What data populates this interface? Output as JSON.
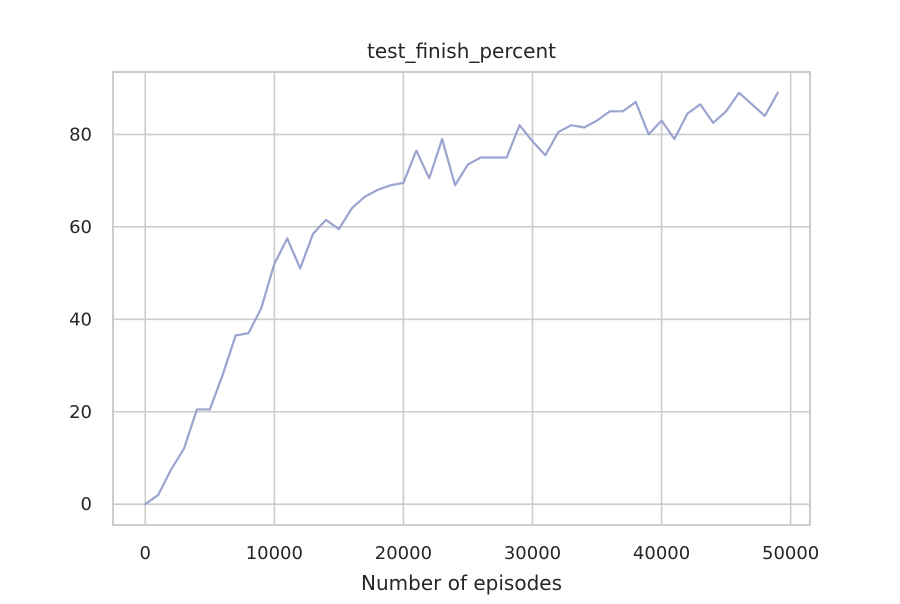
{
  "chart_data": {
    "type": "line",
    "title": "test_finish_percent",
    "xlabel": "Number of episodes",
    "ylabel": "",
    "xlim": [
      -2500,
      51500
    ],
    "ylim": [
      -4.5,
      93.5
    ],
    "xticks": [
      0,
      10000,
      20000,
      30000,
      40000,
      50000
    ],
    "yticks": [
      0,
      20,
      40,
      60,
      80
    ],
    "grid": true,
    "legend": "none",
    "colors": {
      "series": "#9ba3cf",
      "grid": "#cccccc",
      "text": "#262626",
      "background": "#ffffff"
    },
    "series": [
      {
        "x": [
          0,
          1000,
          2000,
          3000,
          4000,
          5000,
          6000,
          7000,
          8000,
          9000,
          10000,
          11000,
          12000,
          13000,
          14000,
          15000,
          16000,
          17000,
          18000,
          19000,
          20000,
          21000,
          22000,
          23000,
          24000,
          25000,
          26000,
          27000,
          28000,
          29000,
          30000,
          31000,
          32000,
          33000,
          34000,
          35000,
          36000,
          37000,
          38000,
          39000,
          40000,
          41000,
          42000,
          43000,
          44000,
          45000,
          46000,
          47000,
          48000,
          49000
        ],
        "values": [
          0,
          2,
          7.5,
          12,
          20.5,
          20.5,
          28,
          36.5,
          37,
          42.5,
          52,
          57.5,
          51,
          58.5,
          61.5,
          59.5,
          64,
          66.5,
          68,
          69,
          69.5,
          76.5,
          70.5,
          79,
          69,
          73.5,
          75,
          75,
          75,
          82,
          78.5,
          75.5,
          80.5,
          82,
          81.5,
          83,
          85,
          85,
          87,
          80,
          83,
          79,
          84.5,
          86.5,
          82.5,
          85,
          89,
          86.5,
          84,
          89
        ]
      }
    ]
  }
}
